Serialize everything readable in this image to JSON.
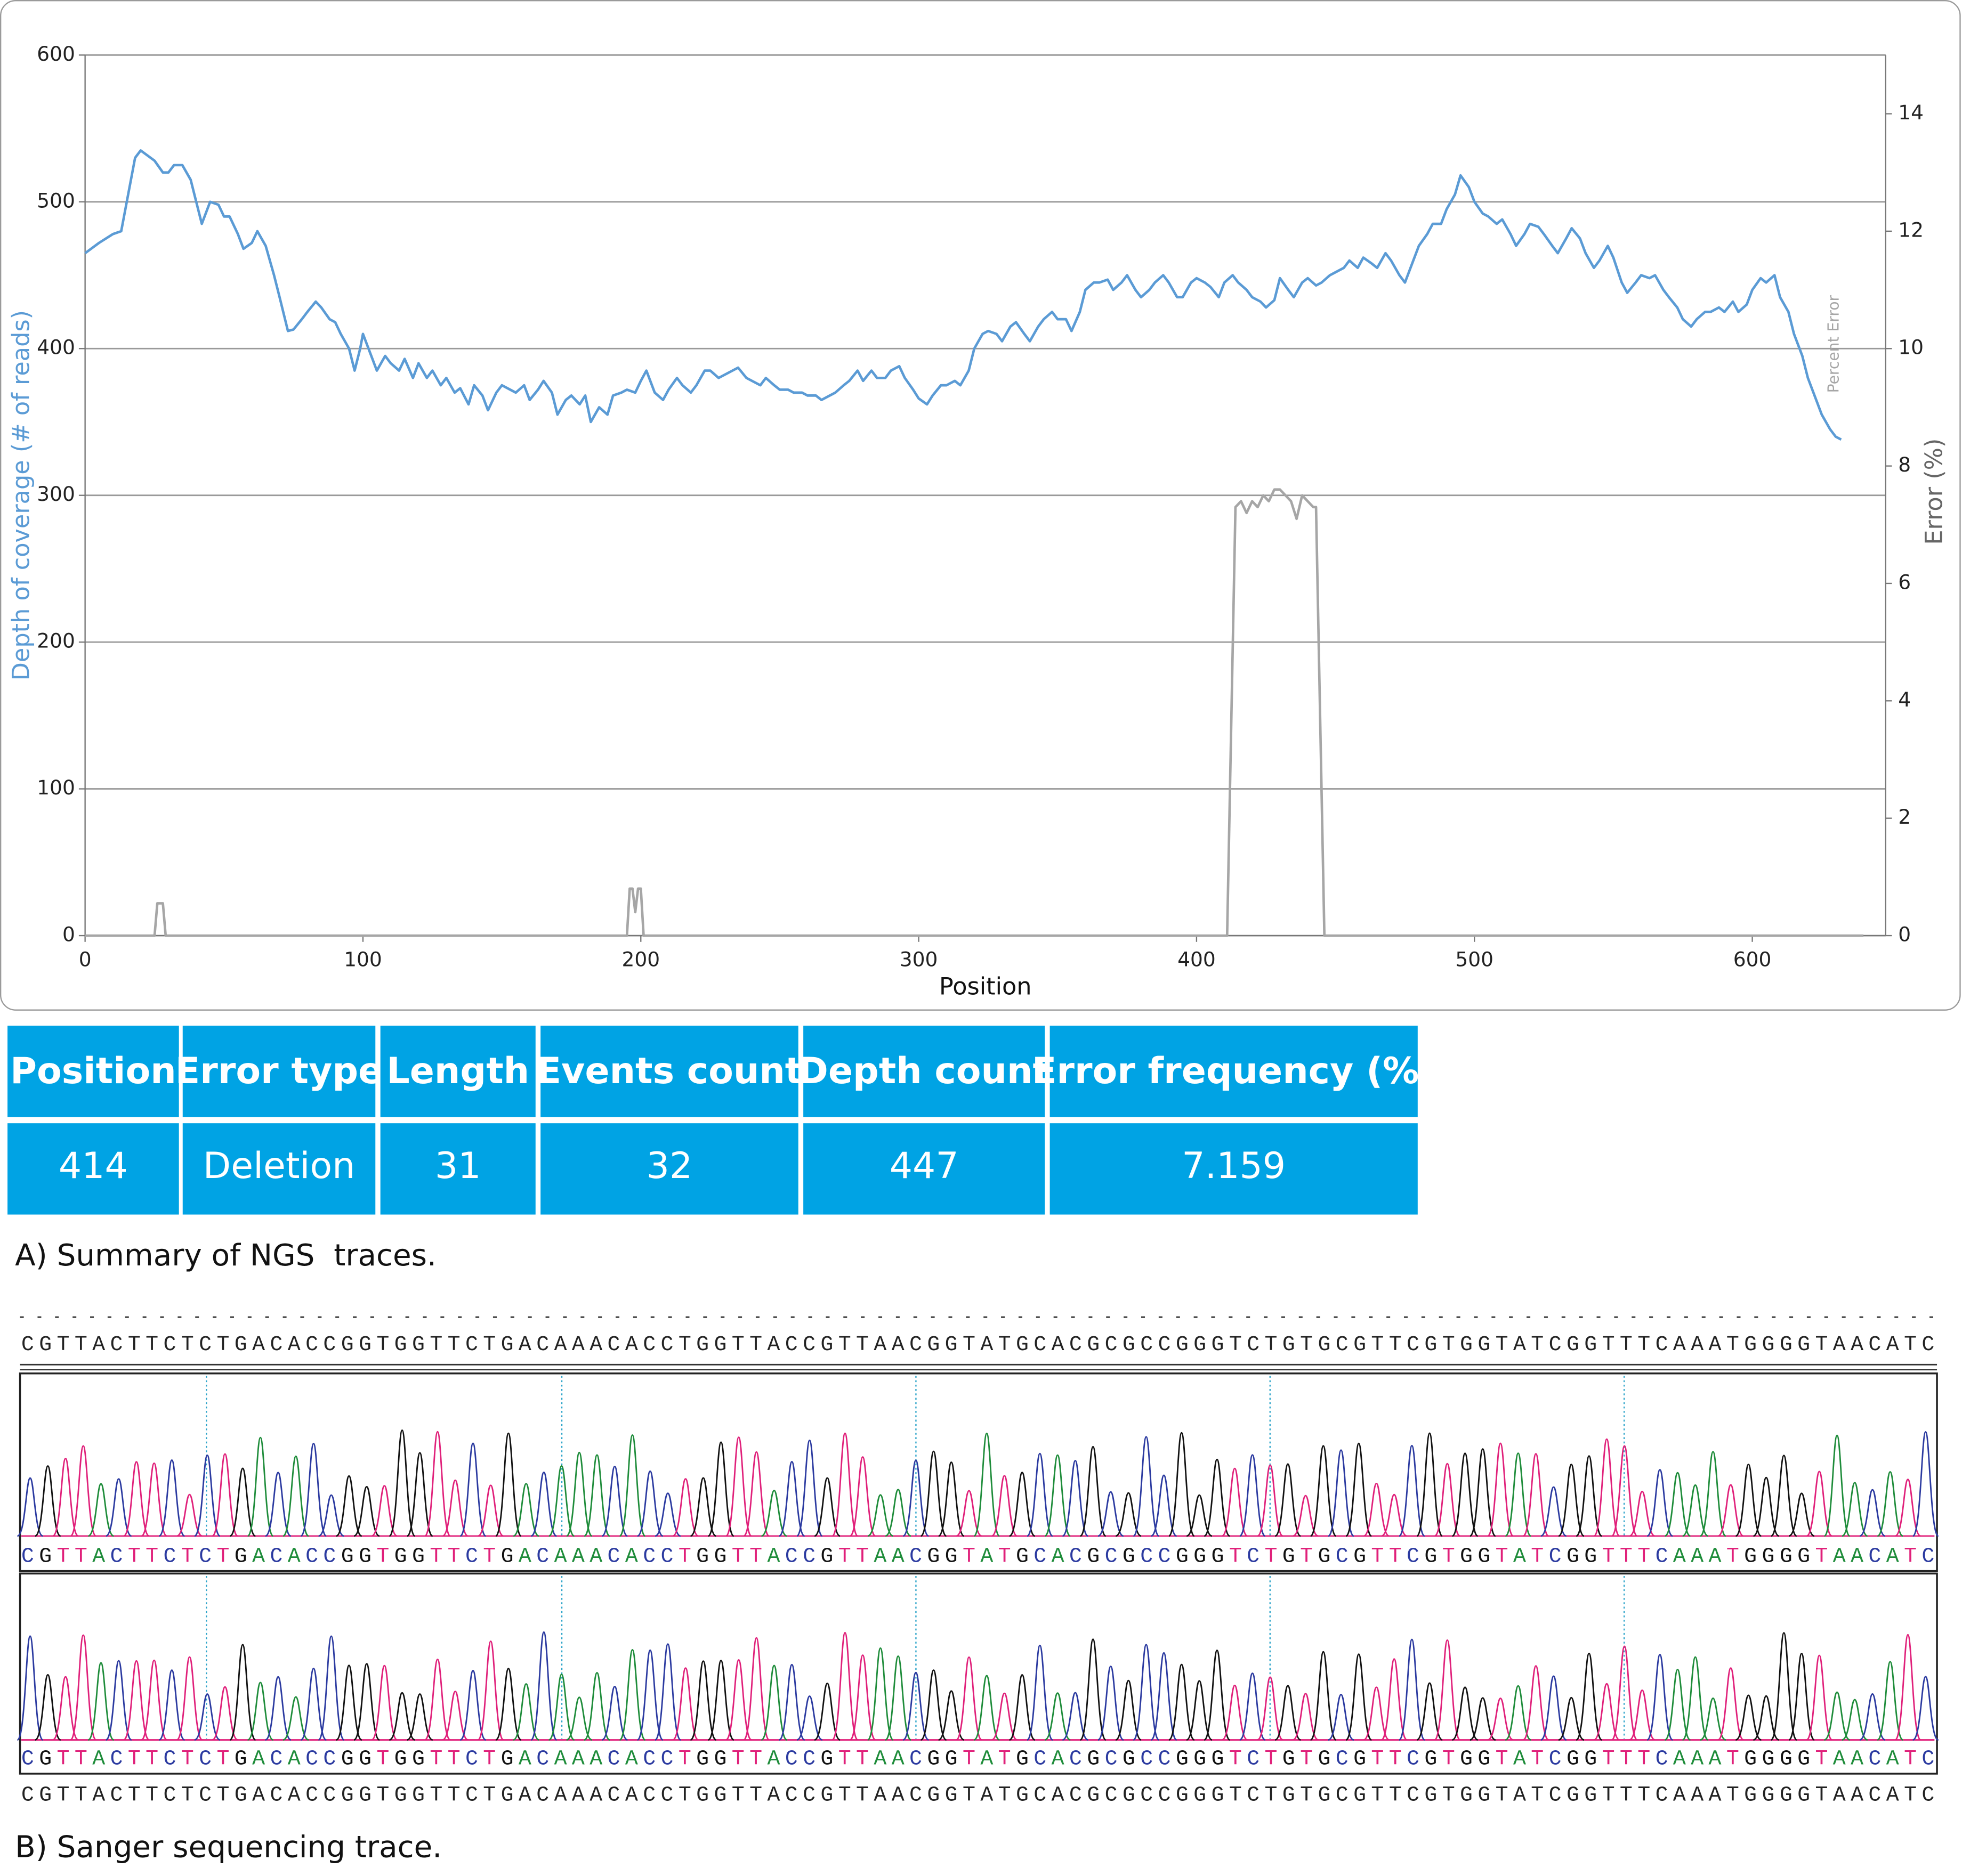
{
  "chart_data": {
    "type": "line",
    "xlabel": "Position",
    "ylabel": "Depth of coverage (# of reads)",
    "y2label": "Error (%)",
    "xlim": [
      0,
      648
    ],
    "xticks": [
      0,
      100,
      200,
      300,
      400,
      500,
      600
    ],
    "ylim": [
      0,
      600
    ],
    "yticks": [
      0,
      100,
      200,
      300,
      400,
      500,
      600
    ],
    "y2lim": [
      0,
      15
    ],
    "y2ticks": [
      0,
      2,
      4,
      6,
      8,
      10,
      12,
      14
    ],
    "grid": true,
    "series": [
      {
        "color": "#5b9bd5",
        "x": [
          0,
          5,
          10,
          13,
          15,
          18,
          20,
          25,
          28,
          30,
          32,
          35,
          38,
          40,
          42,
          45,
          48,
          50,
          52,
          55,
          57,
          60,
          62,
          65,
          68,
          70,
          73,
          75,
          78,
          80,
          83,
          85,
          88,
          90,
          92,
          95,
          97,
          99,
          100,
          103,
          105,
          108,
          110,
          113,
          115,
          118,
          120,
          123,
          125,
          128,
          130,
          133,
          135,
          138,
          140,
          143,
          145,
          148,
          150,
          153,
          155,
          158,
          160,
          163,
          165,
          168,
          170,
          173,
          175,
          178,
          180,
          182,
          185,
          188,
          190,
          193,
          195,
          198,
          200,
          202,
          205,
          208,
          210,
          213,
          215,
          218,
          220,
          223,
          225,
          228,
          230,
          233,
          235,
          238,
          240,
          243,
          245,
          248,
          250,
          253,
          255,
          258,
          260,
          263,
          265,
          268,
          270,
          273,
          275,
          278,
          280,
          283,
          285,
          288,
          290,
          293,
          295,
          298,
          300,
          303,
          305,
          308,
          310,
          313,
          315,
          318,
          320,
          323,
          325,
          328,
          330,
          333,
          335,
          338,
          340,
          343,
          345,
          348,
          350,
          353,
          355,
          358,
          360,
          363,
          365,
          368,
          370,
          373,
          375,
          378,
          380,
          383,
          385,
          388,
          390,
          393,
          395,
          398,
          400,
          403,
          405,
          408,
          410,
          413,
          415,
          418,
          420,
          423,
          425,
          428,
          430,
          433,
          435,
          438,
          440,
          443,
          445,
          448,
          450,
          453,
          455,
          458,
          460,
          463,
          465,
          468,
          470,
          473,
          475,
          478,
          480,
          483,
          485,
          488,
          490,
          493,
          495,
          498,
          500,
          503,
          505,
          508,
          510,
          513,
          515,
          518,
          520,
          523,
          525,
          528,
          530,
          533,
          535,
          538,
          540,
          543,
          545,
          548,
          550,
          553,
          555,
          558,
          560,
          563,
          565,
          568,
          570,
          573,
          575,
          578,
          580,
          583,
          585,
          588,
          590,
          593,
          595,
          598,
          600,
          603,
          605,
          608,
          610,
          613,
          615,
          618,
          620,
          623,
          625,
          628,
          630,
          632
        ],
        "values": [
          465,
          472,
          478,
          480,
          500,
          530,
          535,
          528,
          520,
          520,
          525,
          525,
          515,
          500,
          485,
          500,
          498,
          490,
          490,
          478,
          468,
          472,
          480,
          470,
          450,
          435,
          412,
          413,
          420,
          425,
          432,
          428,
          420,
          418,
          410,
          400,
          385,
          400,
          410,
          395,
          385,
          395,
          390,
          385,
          393,
          380,
          390,
          380,
          385,
          375,
          380,
          370,
          373,
          362,
          375,
          368,
          358,
          370,
          375,
          372,
          370,
          375,
          365,
          372,
          378,
          370,
          355,
          365,
          368,
          362,
          368,
          350,
          360,
          355,
          368,
          370,
          372,
          370,
          378,
          385,
          370,
          365,
          372,
          380,
          375,
          370,
          375,
          385,
          385,
          380,
          382,
          385,
          387,
          380,
          378,
          375,
          380,
          375,
          372,
          372,
          370,
          370,
          368,
          368,
          365,
          368,
          370,
          375,
          378,
          385,
          378,
          385,
          380,
          380,
          385,
          388,
          380,
          372,
          366,
          362,
          368,
          375,
          375,
          378,
          375,
          385,
          400,
          410,
          412,
          410,
          405,
          415,
          418,
          410,
          405,
          415,
          420,
          425,
          420,
          420,
          412,
          425,
          440,
          445,
          445,
          447,
          440,
          445,
          450,
          440,
          435,
          440,
          445,
          450,
          445,
          435,
          435,
          445,
          448,
          445,
          442,
          435,
          445,
          450,
          445,
          440,
          435,
          432,
          428,
          433,
          448,
          440,
          435,
          445,
          448,
          443,
          445,
          450,
          452,
          455,
          460,
          455,
          462,
          458,
          455,
          465,
          460,
          450,
          445,
          460,
          470,
          478,
          485,
          485,
          495,
          505,
          518,
          510,
          500,
          492,
          490,
          485,
          488,
          478,
          470,
          478,
          485,
          483,
          478,
          470,
          465,
          475,
          482,
          475,
          465,
          455,
          460,
          470,
          462,
          445,
          438,
          445,
          450,
          448,
          450,
          440,
          435,
          428,
          420,
          415,
          420,
          425,
          425,
          428,
          425,
          432,
          425,
          430,
          440,
          448,
          445,
          450,
          435,
          425,
          410,
          395,
          380,
          365,
          355,
          345,
          340,
          338
        ]
      },
      {
        "name": "Percent Error",
        "color": "#a6a6a6",
        "axis": "y2",
        "x": [
          0,
          25,
          26,
          28,
          29,
          30,
          195,
          196,
          197,
          198,
          199,
          200,
          201,
          202,
          411,
          414,
          416,
          418,
          420,
          422,
          424,
          426,
          428,
          430,
          432,
          434,
          436,
          438,
          440,
          442,
          443,
          446,
          640
        ],
        "values": [
          0,
          0,
          0.55,
          0.55,
          0,
          0,
          0,
          0.8,
          0.8,
          0.4,
          0.8,
          0.8,
          0,
          0,
          0,
          7.3,
          7.4,
          7.2,
          7.4,
          7.3,
          7.5,
          7.4,
          7.6,
          7.6,
          7.5,
          7.4,
          7.1,
          7.5,
          7.4,
          7.3,
          7.3,
          0,
          0
        ]
      }
    ]
  },
  "table": {
    "header": [
      "Position",
      "Error type",
      "Length",
      "Events count",
      "Depth count",
      "Error frequency (%)"
    ],
    "rows": [
      [
        414,
        "Deletion",
        31,
        32,
        447,
        7.159
      ]
    ]
  },
  "caption_a": "A) Summary of NGS  traces.",
  "sanger": {
    "sequences": [
      "CGTTACTTCTCTGACACCGGTGGTTCTGACAAACACCTGGTTACCGTTAACGGTATGCACGCGCCGGGTCTGTGCGTTCGTGGTATCGGTTTCAAATGGGGTAACATC",
      "CGTTACTTCTCTGACACCGGTGGTTCTGACAAACACCTGGTTACCGTTAACGGTATGCACGCGCCGGGTCTGTGCGTTCGTGGTATCGGTTTCAAATGGGGTAACATC",
      "CGTTACTTCTCTGACACCGGTGGTTCTGACAAACACCTGGTTACCGTTAACGGTATGCACGCGCCGGGTCTGTGCGTTCGTGGTATCGGTTTCAAATGGGGTAACATC",
      "CGTTACTTCTCTGACACCGGTGGTTCTGACAAACACCTGGTTACCGTTAACGGTATGCACGCGCCGGGTCTGTGCGTTCGTGGTATCGGTTTCAAATGGGGTAACATC"
    ],
    "base_colors": {
      "A": "#1e8c3a",
      "C": "#2b3aa0",
      "G": "#111111",
      "T": "#e0207a"
    }
  },
  "caption_b": "B) Sanger sequencing trace."
}
